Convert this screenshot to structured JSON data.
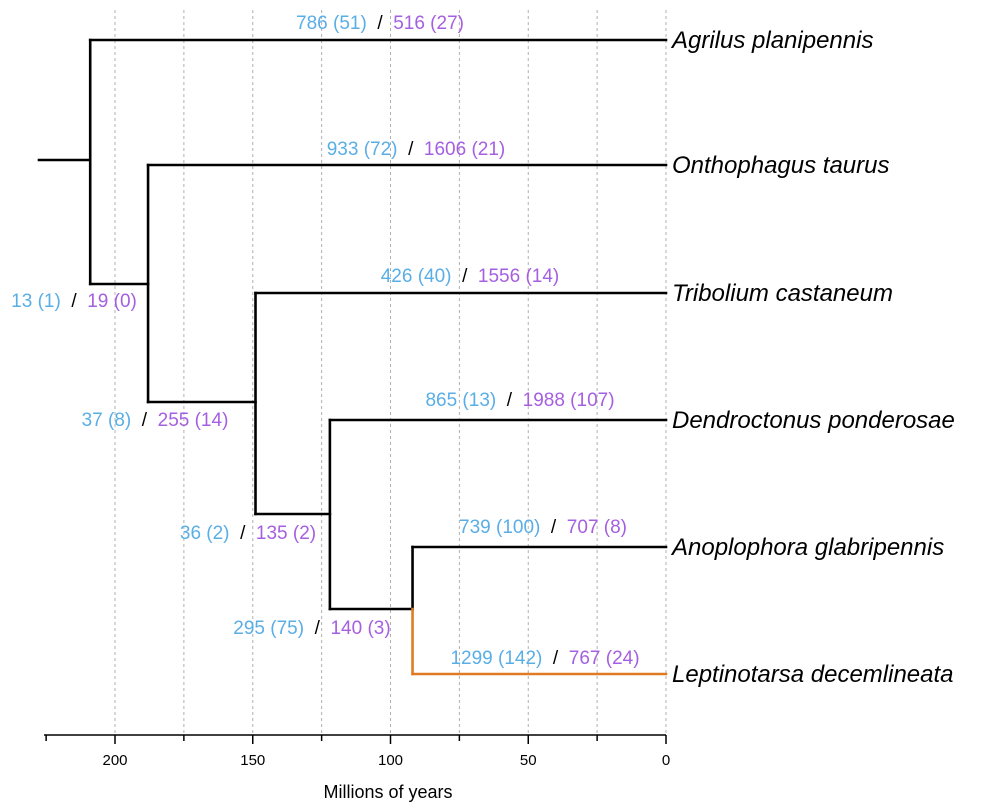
{
  "colors": {
    "gain": "#5aaee6",
    "loss": "#a55fe0",
    "separator": "#000000",
    "highlight_branch": "#e07b22"
  },
  "axis": {
    "label": "Millions of years",
    "ticks": [
      "200",
      "150",
      "100",
      "50",
      "0"
    ],
    "tick_values": [
      200,
      150,
      100,
      50,
      0
    ],
    "gridlines": [
      200,
      175,
      150,
      125,
      100,
      75,
      50,
      25,
      0
    ],
    "range_max": 225,
    "range_min": 0
  },
  "separator": "/",
  "species": [
    "Agrilus planipennis",
    "Onthophagus taurus",
    "Tribolium castaneum",
    "Dendroctonus ponderosae",
    "Anoplophora glabripennis",
    "Leptinotarsa decemlineata"
  ],
  "nodes": {
    "root": 209,
    "n1": 188,
    "n2": 149,
    "n3": 122,
    "n4": 92
  },
  "branch_counts": {
    "agrilus": {
      "gain": "786 (51)",
      "loss": "516 (27)"
    },
    "onthophagus": {
      "gain": "933 (72)",
      "loss": "1606 (21)"
    },
    "tribolium": {
      "gain": "426 (40)",
      "loss": "1556 (14)"
    },
    "dendroctonus": {
      "gain": "865 (13)",
      "loss": "1988 (107)"
    },
    "anoplophora": {
      "gain": "739 (100)",
      "loss": "707 (8)"
    },
    "leptinotarsa": {
      "gain": "1299 (142)",
      "loss": "767 (24)"
    },
    "node_root": {
      "gain": "13 (1)",
      "loss": "19 (0)"
    },
    "node_n1": {
      "gain": "37 (8)",
      "loss": "255 (14)"
    },
    "node_n2": {
      "gain": "36 (2)",
      "loss": "135 (2)"
    },
    "node_n3": {
      "gain": "295 (75)",
      "loss": "140 (3)"
    }
  }
}
